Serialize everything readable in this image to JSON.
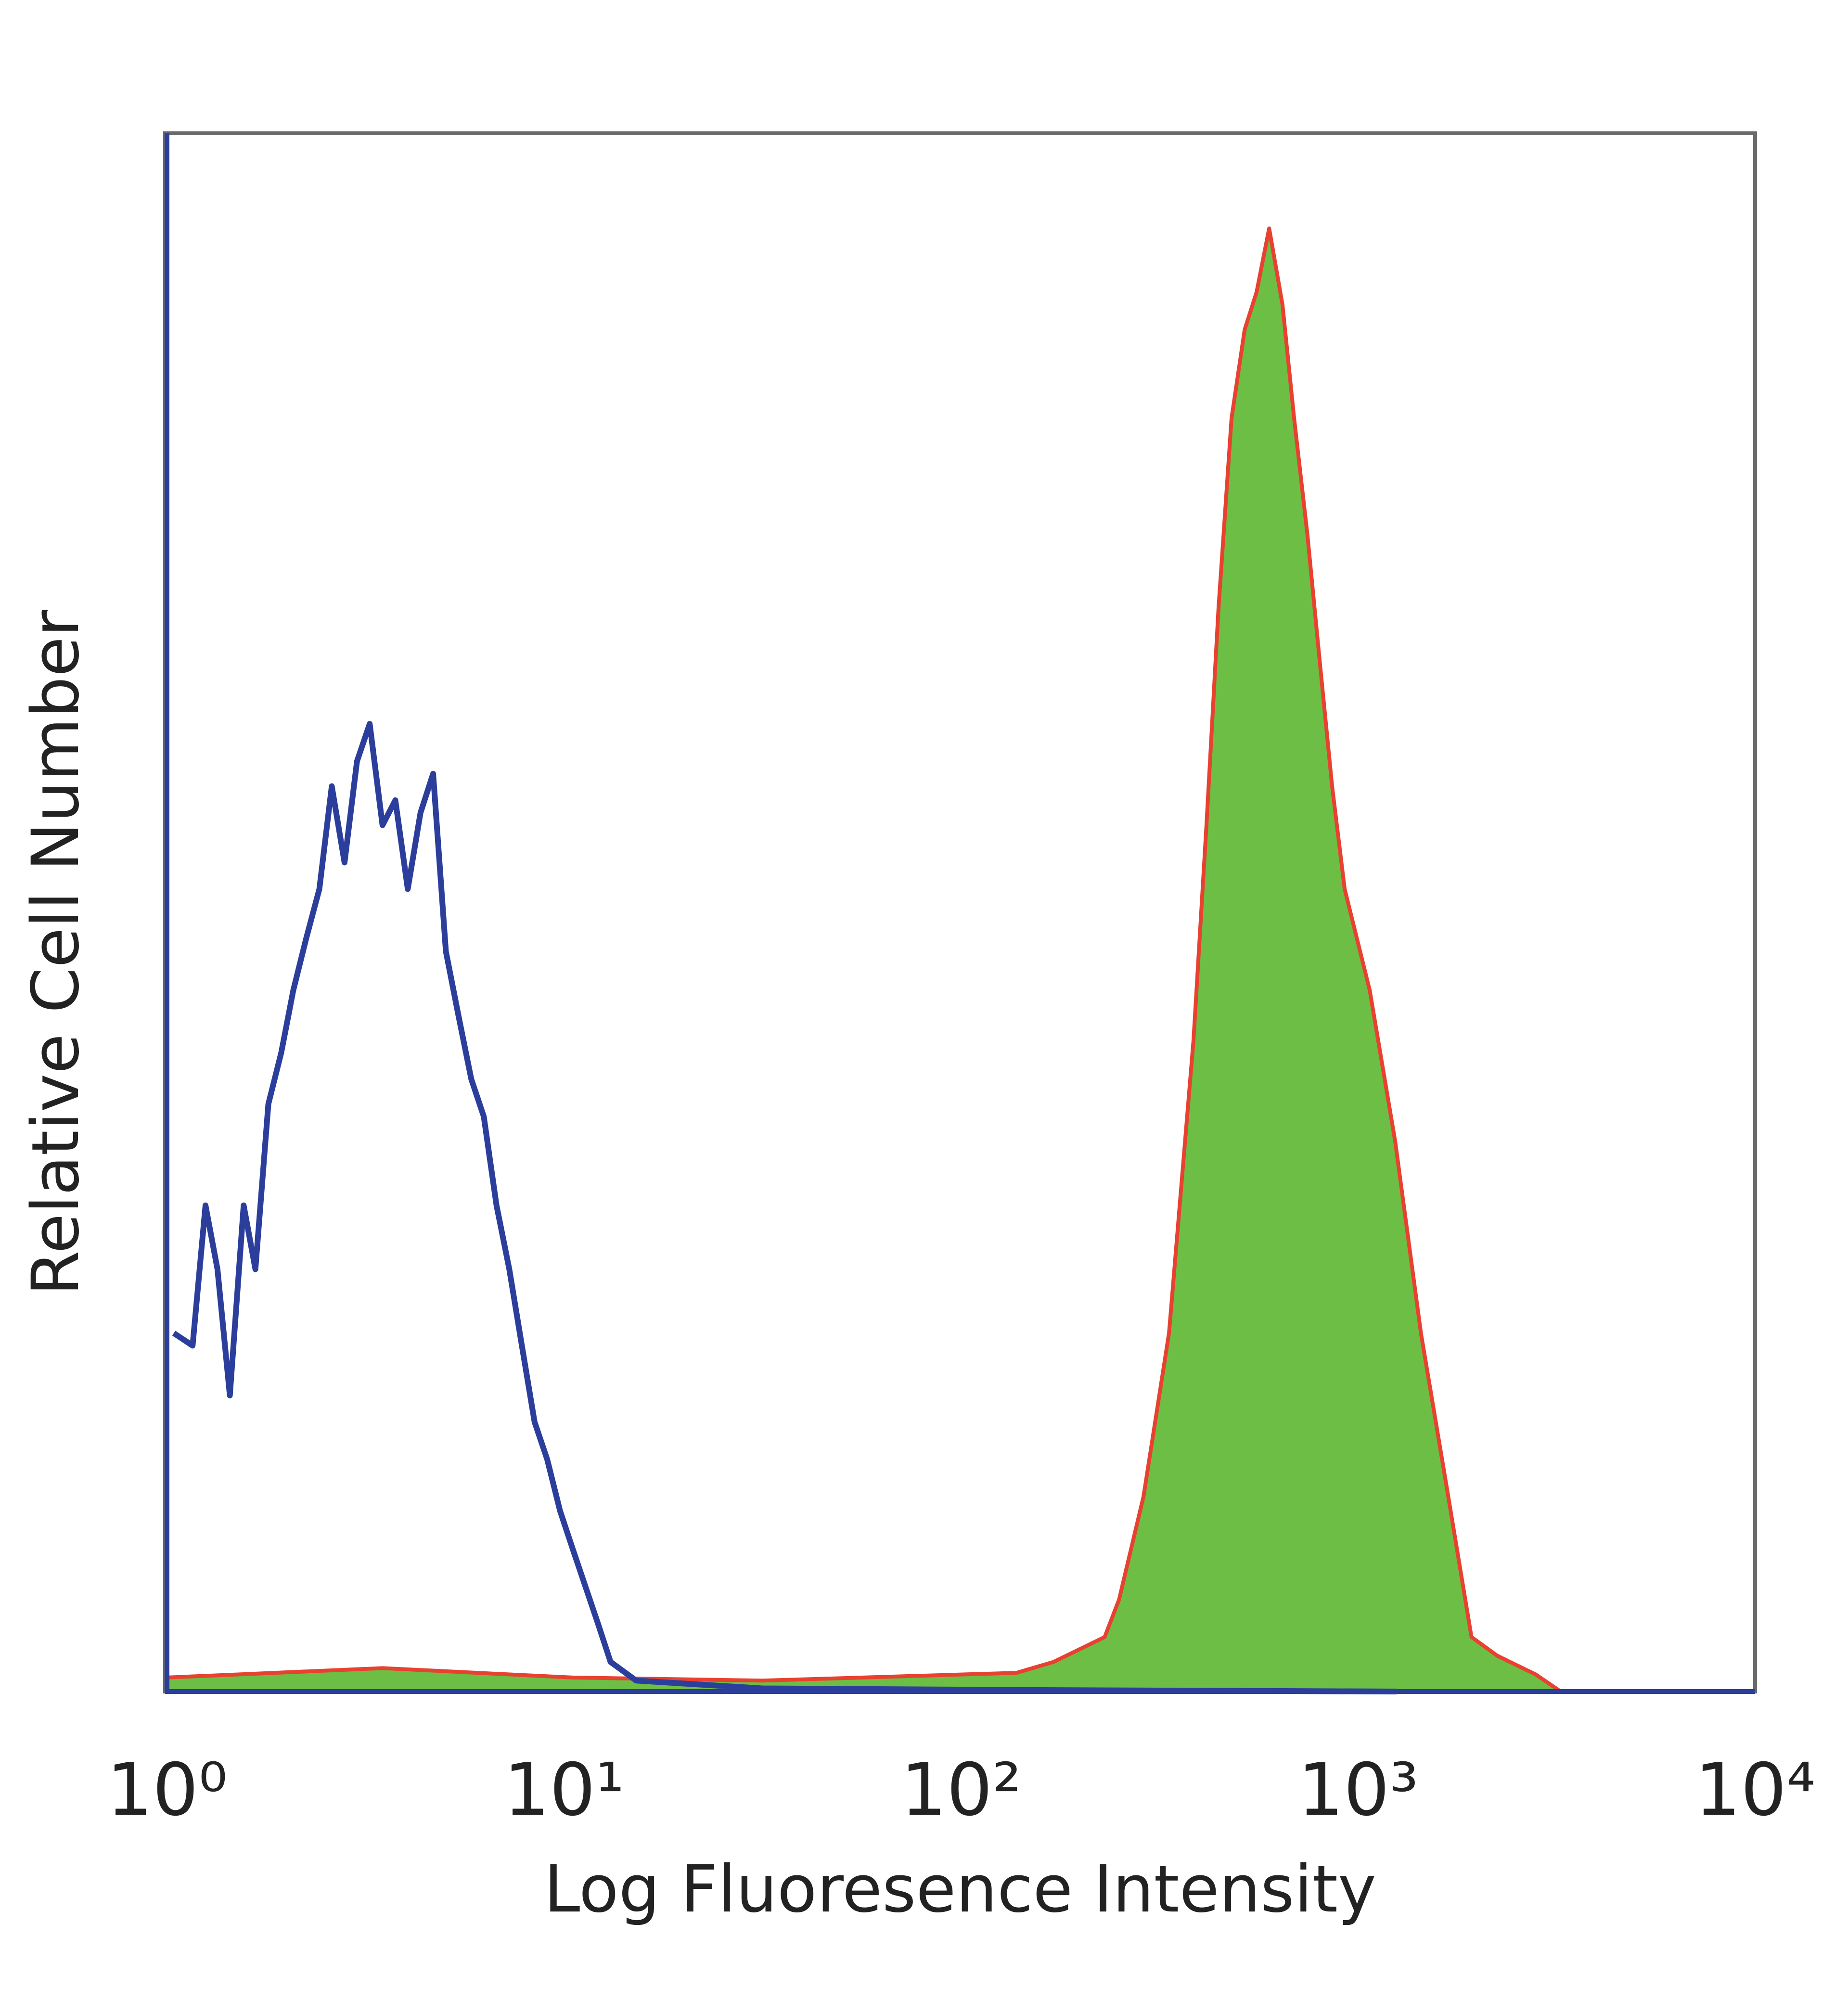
{
  "chart_data": {
    "type": "histogram-overlay",
    "xlabel": "Log Fluoresence Intensity",
    "ylabel": "Relative Cell Number",
    "xscale": "log",
    "xlim": [
      1,
      10000
    ],
    "ylim": [
      0,
      100
    ],
    "xticks": [
      {
        "value": 1,
        "label": "10⁰"
      },
      {
        "value": 10,
        "label": "10¹"
      },
      {
        "value": 100,
        "label": "10²"
      },
      {
        "value": 1000,
        "label": "10³"
      },
      {
        "value": 10000,
        "label": "10⁴"
      }
    ],
    "series": [
      {
        "color": "#e8412f",
        "fill": "#6dbe45",
        "x": [
          1.0,
          3.49,
          10.5,
          31.6,
          138,
          171,
          230,
          250,
          288,
          334,
          385,
          415,
          445,
          480,
          518,
          555,
          597,
          645,
          690,
          745,
          800,
          860,
          925,
          1070,
          1240,
          1440,
          1670,
          1930,
          2240,
          2800,
          3240
        ],
        "values": [
          0.9,
          1.5,
          0.9,
          0.7,
          1.2,
          1.9,
          3.5,
          5.9,
          12.5,
          23.0,
          41.8,
          55.6,
          69.5,
          81.7,
          87.4,
          89.8,
          93.9,
          89.0,
          81.7,
          74.3,
          66.2,
          58.1,
          51.5,
          45.0,
          35.3,
          23.0,
          13.2,
          3.5,
          2.3,
          1.1,
          0
        ]
      },
      {
        "color": "#2c3e9c",
        "x": [
          1.04,
          1.16,
          1.25,
          1.34,
          1.44,
          1.56,
          1.67,
          1.8,
          1.94,
          2.08,
          2.24,
          2.42,
          2.6,
          2.8,
          3.01,
          3.24,
          3.49,
          3.76,
          4.04,
          4.35,
          4.68,
          5.04,
          5.42,
          5.84,
          6.28,
          6.76,
          7.28,
          7.83,
          8.43,
          9.07,
          9.77,
          10.5,
          11.3,
          12.2,
          13.1,
          15.2,
          31.6,
          138,
          1250
        ],
        "values": [
          23.0,
          22.2,
          31.2,
          27.1,
          19.0,
          31.2,
          27.1,
          37.7,
          41.0,
          45.0,
          48.3,
          51.5,
          58.1,
          53.2,
          59.7,
          62.1,
          55.6,
          57.2,
          51.5,
          56.4,
          58.9,
          47.5,
          43.4,
          39.3,
          36.9,
          31.2,
          27.1,
          22.2,
          17.3,
          14.9,
          11.6,
          9.2,
          6.8,
          4.3,
          1.9,
          0.7,
          0.2,
          0.1,
          0
        ]
      }
    ]
  }
}
